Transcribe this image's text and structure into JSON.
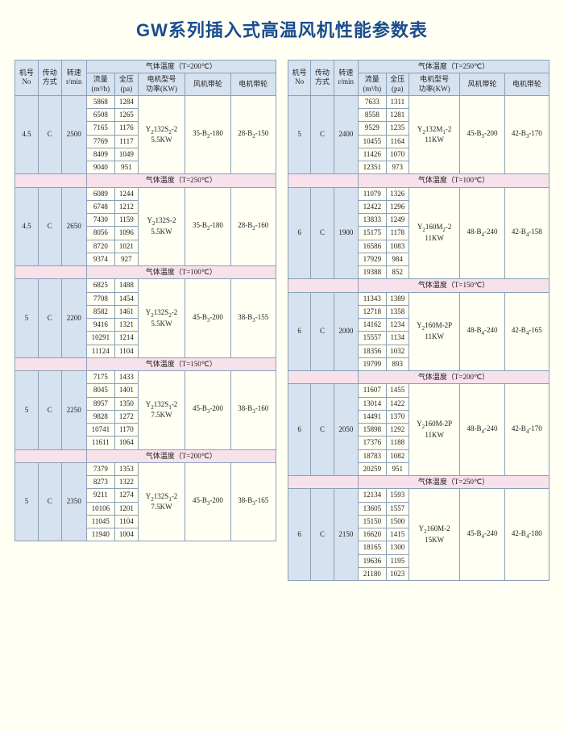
{
  "title": "GW系列插入式高温风机性能参数表",
  "colors": {
    "background": "#fffff4",
    "title_color": "#1a4d8f",
    "header_bg": "#d6e2f0",
    "section_bg": "#f7e1ea",
    "border": "#8aa0b8",
    "text": "#222222"
  },
  "headers": {
    "no": "机号\nNo",
    "drive": "传动\n方式",
    "speed": "转速\nr/min",
    "temp_prefix": "气体温度（T=",
    "temp_suffix": "℃）",
    "flow": "流量\n(m³/h)",
    "pressure": "全压\n(pa)",
    "motor": "电机型号\n功率(KW)",
    "fan_pulley": "风机带轮",
    "motor_pulley": "电机带轮"
  },
  "left": {
    "top_temp": "200",
    "blocks": [
      {
        "no": "4.5",
        "drive": "C",
        "speed": "2500",
        "motor": "Y₂132S₂-2\n5.5KW",
        "fan_pulley": "35-B₂-180",
        "motor_pulley": "28-B₂-150",
        "rows": [
          [
            "5868",
            "1284"
          ],
          [
            "6508",
            "1265"
          ],
          [
            "7165",
            "1176"
          ],
          [
            "7769",
            "1117"
          ],
          [
            "8409",
            "1049"
          ],
          [
            "9040",
            "951"
          ]
        ]
      },
      {
        "section_temp": "250",
        "no": "4.5",
        "drive": "C",
        "speed": "2650",
        "motor": "Y₂132S-2\n5.5KW",
        "fan_pulley": "35-B₂-180",
        "motor_pulley": "28-B₂-160",
        "rows": [
          [
            "6089",
            "1244"
          ],
          [
            "6748",
            "1212"
          ],
          [
            "7430",
            "1159"
          ],
          [
            "8056",
            "1096"
          ],
          [
            "8720",
            "1021"
          ],
          [
            "9374",
            "927"
          ]
        ]
      },
      {
        "section_temp": "100",
        "no": "5",
        "drive": "C",
        "speed": "2200",
        "motor": "Y₂132S₂-2\n5.5KW",
        "fan_pulley": "45-B₃-200",
        "motor_pulley": "38-B₃-155",
        "rows": [
          [
            "6825",
            "1488"
          ],
          [
            "7708",
            "1454"
          ],
          [
            "8582",
            "1461"
          ],
          [
            "9416",
            "1321"
          ],
          [
            "10291",
            "1214"
          ],
          [
            "11124",
            "1104"
          ]
        ]
      },
      {
        "section_temp": "150",
        "no": "5",
        "drive": "C",
        "speed": "2250",
        "motor": "Y₂132S₁-2\n7.5KW",
        "fan_pulley": "45-B₃-200",
        "motor_pulley": "38-B₃-160",
        "rows": [
          [
            "7175",
            "1433"
          ],
          [
            "8045",
            "1401"
          ],
          [
            "8957",
            "1350"
          ],
          [
            "9828",
            "1272"
          ],
          [
            "10741",
            "1170"
          ],
          [
            "11611",
            "1064"
          ]
        ]
      },
      {
        "section_temp": "200",
        "no": "5",
        "drive": "C",
        "speed": "2350",
        "motor": "Y₂132S₁-2\n7.5KW",
        "fan_pulley": "45-B₃-200",
        "motor_pulley": "38-B₃-165",
        "rows": [
          [
            "7379",
            "1353"
          ],
          [
            "8273",
            "1322"
          ],
          [
            "9211",
            "1274"
          ],
          [
            "10106",
            "1201"
          ],
          [
            "11045",
            "1104"
          ],
          [
            "11940",
            "1004"
          ]
        ]
      }
    ]
  },
  "right": {
    "top_temp": "250",
    "blocks": [
      {
        "no": "5",
        "drive": "C",
        "speed": "2400",
        "motor": "Y₂132M₁-2\n11KW",
        "fan_pulley": "45-B₃-200",
        "motor_pulley": "42-B₃-170",
        "rows": [
          [
            "7633",
            "1311"
          ],
          [
            "8558",
            "1281"
          ],
          [
            "9529",
            "1235"
          ],
          [
            "10455",
            "1164"
          ],
          [
            "11426",
            "1070"
          ],
          [
            "12351",
            "973"
          ]
        ]
      },
      {
        "section_temp": "100",
        "no": "6",
        "drive": "C",
        "speed": "1900",
        "motor": "Y₂160M₂-2\n11KW",
        "fan_pulley": "48-B₄-240",
        "motor_pulley": "42-B₄-158",
        "rows": [
          [
            "11079",
            "1326"
          ],
          [
            "12422",
            "1296"
          ],
          [
            "13833",
            "1249"
          ],
          [
            "15175",
            "1178"
          ],
          [
            "16586",
            "1083"
          ],
          [
            "17929",
            "984"
          ],
          [
            "19388",
            "852"
          ]
        ]
      },
      {
        "section_temp": "150",
        "no": "6",
        "drive": "C",
        "speed": "2000",
        "motor": "Y₂160M-2P\n11KW",
        "fan_pulley": "48-B₄-240",
        "motor_pulley": "42-B₄-165",
        "rows": [
          [
            "11343",
            "1389"
          ],
          [
            "12718",
            "1358"
          ],
          [
            "14162",
            "1234"
          ],
          [
            "15557",
            "1134"
          ],
          [
            "18356",
            "1032"
          ],
          [
            "19799",
            "893"
          ]
        ]
      },
      {
        "section_temp": "200",
        "no": "6",
        "drive": "C",
        "speed": "2050",
        "motor": "Y₂160M-2P\n11KW",
        "fan_pulley": "48-B₄-240",
        "motor_pulley": "42-B₄-170",
        "rows": [
          [
            "11607",
            "1455"
          ],
          [
            "13014",
            "1422"
          ],
          [
            "14491",
            "1370"
          ],
          [
            "15898",
            "1292"
          ],
          [
            "17376",
            "1188"
          ],
          [
            "18783",
            "1082"
          ],
          [
            "20259",
            "951"
          ]
        ]
      },
      {
        "section_temp": "250",
        "no": "6",
        "drive": "C",
        "speed": "2150",
        "motor": "Y₂160M-2\n15KW",
        "fan_pulley": "45-B₄-240",
        "motor_pulley": "42-B₄-180",
        "rows": [
          [
            "12134",
            "1593"
          ],
          [
            "13605",
            "1557"
          ],
          [
            "15150",
            "1500"
          ],
          [
            "16620",
            "1415"
          ],
          [
            "18165",
            "1300"
          ],
          [
            "19636",
            "1195"
          ],
          [
            "21180",
            "1023"
          ]
        ]
      }
    ]
  }
}
